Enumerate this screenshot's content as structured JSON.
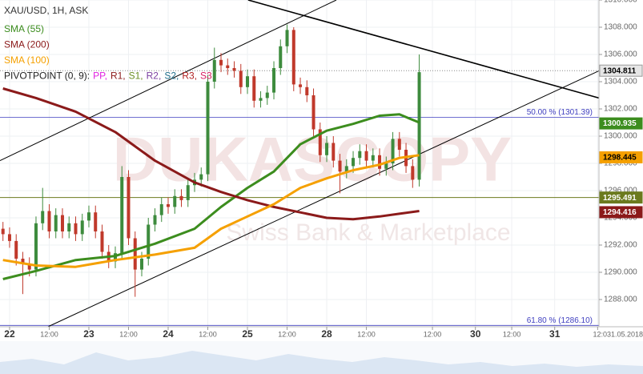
{
  "chart_data": {
    "type": "candlestick",
    "title": "XAU/USD, 1H, ASK",
    "xlim": [
      -2.9,
      178.4
    ],
    "ylim": [
      1286,
      1310
    ],
    "xticks": [
      {
        "value": 0,
        "label": "22"
      },
      {
        "value": 12,
        "label": "12:00"
      },
      {
        "value": 24,
        "label": "23"
      },
      {
        "value": 36,
        "label": "12:00"
      },
      {
        "value": 48,
        "label": "24"
      },
      {
        "value": 60,
        "label": "12:00"
      },
      {
        "value": 72,
        "label": "25"
      },
      {
        "value": 84,
        "label": "12:00"
      },
      {
        "value": 96,
        "label": "28"
      },
      {
        "value": 108,
        "label": "12:00"
      },
      {
        "value": 128,
        "label": "12:00"
      },
      {
        "value": 141,
        "label": "30"
      },
      {
        "value": 152,
        "label": "12:00"
      },
      {
        "value": 165,
        "label": "31"
      },
      {
        "value": 178,
        "label": "12:031.05.2018"
      }
    ],
    "yticks": [
      {
        "value": 1288,
        "label": "1288.000"
      },
      {
        "value": 1290,
        "label": "1290.000"
      },
      {
        "value": 1292,
        "label": "1292.000"
      },
      {
        "value": 1294,
        "label": "1294.000"
      },
      {
        "value": 1296,
        "label": "1296.000"
      },
      {
        "value": 1298,
        "label": "1298.000"
      },
      {
        "value": 1300,
        "label": "1300.000"
      },
      {
        "value": 1302,
        "label": "1302.000"
      },
      {
        "value": 1304,
        "label": "1304.000"
      },
      {
        "value": 1306,
        "label": "1306.000"
      },
      {
        "value": 1308,
        "label": "1308.000"
      },
      {
        "value": 1310,
        "label": "1310.000"
      }
    ],
    "grid": true,
    "up_color": "#3d8b3d",
    "down_color": "#c0392b",
    "x": [
      -2,
      0,
      2,
      4,
      6,
      8,
      10,
      12,
      14,
      16,
      18,
      20,
      22,
      24,
      26,
      28,
      30,
      32,
      34,
      36,
      38,
      40,
      42,
      44,
      46,
      48,
      50,
      52,
      54,
      56,
      58,
      60,
      62,
      64,
      66,
      68,
      70,
      72,
      74,
      76,
      78,
      80,
      82,
      84,
      86,
      88,
      90,
      92,
      94,
      96,
      98,
      100,
      102,
      104,
      106,
      108,
      110,
      112,
      114,
      116,
      118,
      120,
      122,
      124
    ],
    "open": [
      1293.2,
      1292.8,
      1292.3,
      1291.0,
      1290.6,
      1290.2,
      1293.6,
      1294.5,
      1293.0,
      1294.2,
      1293.0,
      1293.6,
      1292.8,
      1293.8,
      1294.4,
      1293.0,
      1291.5,
      1290.8,
      1291.4,
      1297.0,
      1292.5,
      1290.2,
      1291.0,
      1293.5,
      1294.2,
      1295.0,
      1294.8,
      1295.6,
      1295.3,
      1296.4,
      1296.8,
      1297.2,
      1304.0,
      1305.6,
      1305.2,
      1305.0,
      1304.8,
      1303.6,
      1304.4,
      1302.6,
      1302.8,
      1303.2,
      1305.0,
      1306.6,
      1307.8,
      1303.8,
      1303.6,
      1303.0,
      1300.5,
      1298.6,
      1299.5,
      1298.2,
      1297.4,
      1297.8,
      1298.4,
      1298.9,
      1298.2,
      1298.6,
      1297.6,
      1298.0,
      1299.8,
      1299.0,
      1297.8,
      1296.8
    ],
    "high": [
      1293.7,
      1293.3,
      1292.8,
      1291.5,
      1291.1,
      1294.1,
      1296.2,
      1295.0,
      1294.7,
      1294.7,
      1294.1,
      1294.1,
      1294.3,
      1294.9,
      1294.9,
      1293.5,
      1292.0,
      1291.9,
      1297.8,
      1297.5,
      1293.0,
      1291.5,
      1294.0,
      1294.7,
      1295.5,
      1295.5,
      1296.1,
      1296.1,
      1296.9,
      1297.3,
      1297.7,
      1304.5,
      1306.5,
      1306.1,
      1305.7,
      1305.5,
      1305.3,
      1304.9,
      1304.9,
      1303.3,
      1303.7,
      1305.5,
      1307.1,
      1308.2,
      1308.0,
      1304.3,
      1304.1,
      1303.5,
      1301.0,
      1300.0,
      1300.0,
      1298.7,
      1298.3,
      1298.9,
      1299.4,
      1299.4,
      1299.1,
      1299.1,
      1298.5,
      1300.3,
      1300.3,
      1299.5,
      1298.3,
      1306.0
    ],
    "low": [
      1292.3,
      1291.8,
      1290.5,
      1288.4,
      1289.7,
      1289.7,
      1293.1,
      1292.5,
      1292.5,
      1292.5,
      1292.5,
      1292.3,
      1292.3,
      1293.3,
      1292.5,
      1291.0,
      1290.3,
      1290.3,
      1290.9,
      1292.0,
      1288.2,
      1289.7,
      1290.5,
      1293.0,
      1293.7,
      1294.3,
      1294.3,
      1294.8,
      1294.8,
      1295.9,
      1296.3,
      1296.7,
      1303.5,
      1304.7,
      1304.5,
      1304.3,
      1303.1,
      1303.1,
      1302.1,
      1302.1,
      1302.3,
      1302.7,
      1304.5,
      1306.1,
      1303.3,
      1303.1,
      1302.5,
      1300.0,
      1298.1,
      1298.1,
      1297.7,
      1295.8,
      1296.9,
      1297.3,
      1297.9,
      1297.7,
      1297.7,
      1297.1,
      1297.1,
      1297.5,
      1298.5,
      1297.3,
      1296.2,
      1296.3
    ],
    "close": [
      1292.8,
      1292.3,
      1291.0,
      1290.6,
      1290.2,
      1293.6,
      1294.5,
      1293.0,
      1294.2,
      1293.0,
      1293.6,
      1292.8,
      1293.8,
      1294.4,
      1293.0,
      1291.5,
      1290.8,
      1291.4,
      1297.0,
      1292.5,
      1290.2,
      1291.0,
      1293.5,
      1294.2,
      1295.0,
      1294.8,
      1295.6,
      1295.3,
      1296.4,
      1296.8,
      1297.2,
      1304.0,
      1305.6,
      1305.2,
      1305.0,
      1304.8,
      1303.6,
      1304.4,
      1302.6,
      1302.8,
      1303.2,
      1305.0,
      1306.6,
      1307.8,
      1303.8,
      1303.6,
      1303.0,
      1300.5,
      1298.6,
      1299.5,
      1298.2,
      1297.4,
      1297.8,
      1298.4,
      1298.9,
      1298.2,
      1298.6,
      1297.6,
      1298.0,
      1299.8,
      1299.0,
      1297.8,
      1296.8,
      1304.7
    ],
    "series": [
      {
        "name": "SMA (55)",
        "color": "#3c8d1e",
        "x": [
          -2,
          8,
          20,
          32,
          44,
          56,
          64,
          72,
          80,
          88,
          96,
          104,
          112,
          118,
          124
        ],
        "values": [
          1289.5,
          1290.1,
          1290.9,
          1291.2,
          1292.1,
          1293.2,
          1294.8,
          1296.2,
          1297.4,
          1299.4,
          1300.4,
          1300.9,
          1301.5,
          1301.6,
          1301.0
        ]
      },
      {
        "name": "SMA (200)",
        "color": "#8b1a1a",
        "x": [
          -2,
          8,
          20,
          32,
          44,
          56,
          64,
          72,
          80,
          88,
          96,
          104,
          112,
          118,
          124
        ],
        "values": [
          1303.5,
          1302.8,
          1301.8,
          1300.3,
          1298.2,
          1296.6,
          1295.9,
          1295.3,
          1294.8,
          1294.4,
          1294.0,
          1293.9,
          1294.1,
          1294.3,
          1294.5
        ]
      },
      {
        "name": "SMA (100)",
        "color": "#f5a000",
        "x": [
          -2,
          8,
          20,
          32,
          44,
          56,
          64,
          72,
          80,
          88,
          96,
          104,
          112,
          118,
          124
        ],
        "values": [
          1290.9,
          1290.5,
          1290.4,
          1290.9,
          1291.3,
          1291.8,
          1293.2,
          1294.1,
          1295.0,
          1296.2,
          1296.9,
          1297.5,
          1297.9,
          1298.4,
          1298.6
        ]
      }
    ],
    "pivot_title": "PIVOTPOINT (0, 9):",
    "pivot_items": [
      {
        "name": "PP,",
        "color": "#e020e0"
      },
      {
        "name": "R1,",
        "color": "#8b1a1a"
      },
      {
        "name": "S1,",
        "color": "#6b8e23"
      },
      {
        "name": "R2,",
        "color": "#7b3fa0"
      },
      {
        "name": "S2,",
        "color": "#1f6f8b"
      },
      {
        "name": "R3,",
        "color": "#b22222"
      },
      {
        "name": "S3",
        "color": "#d81b60"
      }
    ],
    "trend_lines": [
      {
        "color": "#000000",
        "x": [
          72.2,
          178.4
        ],
        "y": [
          1310,
          1302.8
        ]
      },
      {
        "color": "#000000",
        "x": [
          -2.9,
          98.9
        ],
        "y": [
          1298.2,
          1310
        ]
      },
      {
        "color": "#000000",
        "x": [
          11.6,
          178.4
        ],
        "y": [
          1286,
          1304.8
        ]
      }
    ],
    "fib_levels": [
      {
        "label": "50.00 % (1301.39)",
        "value": 1301.39,
        "color": "#4040c0"
      },
      {
        "label": "61.80 % (1286.10)",
        "value": 1286.1,
        "color": "#4040c0"
      }
    ],
    "price_labels": [
      {
        "value": 1304.811,
        "color": "#e6e6e6",
        "text_color": "#000000"
      },
      {
        "value": 1300.935,
        "color": "#3c8d1e",
        "text_color": "#ffffff"
      },
      {
        "value": 1298.445,
        "color": "#f5a000",
        "text_color": "#000000"
      },
      {
        "value": 1295.491,
        "color": "#6b7a1e",
        "text_color": "#ffffff"
      },
      {
        "value": 1294.416,
        "color": "#8b1a1a",
        "text_color": "#ffffff"
      }
    ],
    "watermark": "DUKASCOPY",
    "watermark_sub": "Swiss Bank & Marketplace"
  }
}
